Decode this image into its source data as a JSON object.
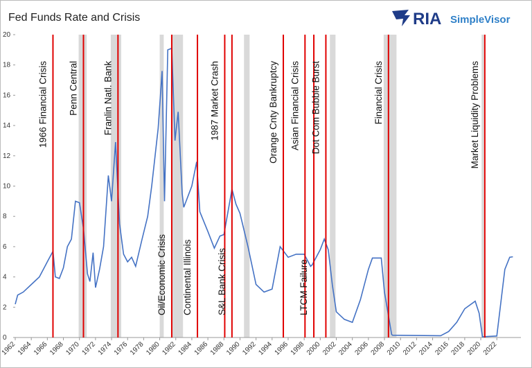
{
  "chart_data": {
    "type": "line",
    "title": "Fed Funds Rate and Crisis",
    "brand": {
      "name": "RIA",
      "product": "SimpleVisor"
    },
    "color": "#4472c4",
    "x": [
      1962,
      1962.3,
      1963,
      1964,
      1965,
      1966,
      1966.7,
      1967,
      1967.5,
      1968,
      1968.5,
      1969,
      1969.5,
      1970,
      1970.5,
      1971,
      1971.3,
      1971.7,
      1972,
      1972.5,
      1973,
      1973.6,
      1974,
      1974.5,
      1975,
      1975.5,
      1976,
      1976.5,
      1977,
      1977.8,
      1978.5,
      1979,
      1979.8,
      1980.3,
      1980.6,
      1981,
      1981.5,
      1981.9,
      1982.3,
      1982.8,
      1983,
      1984,
      1984.6,
      1985,
      1986,
      1986.8,
      1987.5,
      1988,
      1989,
      1989.5,
      1990,
      1991,
      1992,
      1993,
      1994,
      1995,
      1996,
      1997,
      1998,
      1998.8,
      1999,
      2000,
      2000.5,
      2001,
      2001.5,
      2002,
      2003,
      2004,
      2005,
      2006,
      2006.5,
      2007.6,
      2008,
      2008.9,
      2009,
      2015,
      2016,
      2017,
      2018,
      2019.3,
      2019.8,
      2020.2,
      2022,
      2022.5,
      2023,
      2023.6,
      2024
    ],
    "values": [
      2.2,
      2.8,
      3.0,
      3.5,
      4.0,
      5.0,
      5.7,
      4.0,
      3.9,
      4.6,
      6.0,
      6.5,
      9.0,
      8.9,
      7.2,
      4.2,
      3.7,
      5.6,
      3.3,
      4.5,
      6.0,
      10.7,
      9.0,
      12.9,
      7.5,
      5.5,
      5.0,
      5.3,
      4.7,
      6.5,
      8.0,
      10.0,
      13.8,
      17.6,
      9.0,
      19.0,
      19.1,
      13.0,
      14.9,
      9.5,
      8.6,
      10.0,
      11.6,
      8.3,
      7.0,
      5.9,
      6.7,
      6.8,
      9.8,
      8.8,
      8.2,
      6.0,
      3.5,
      3.0,
      3.2,
      6.0,
      5.3,
      5.5,
      5.5,
      4.7,
      4.8,
      5.8,
      6.5,
      5.8,
      3.5,
      1.7,
      1.2,
      1.0,
      2.5,
      4.5,
      5.25,
      5.25,
      3.0,
      0.2,
      0.15,
      0.12,
      0.4,
      1.0,
      1.9,
      2.4,
      1.6,
      0.05,
      0.1,
      2.3,
      4.5,
      5.3,
      5.33
    ],
    "xlim": [
      1962,
      2025
    ],
    "ylim": [
      0,
      20
    ],
    "xticks": [
      1962,
      1964,
      1966,
      1968,
      1970,
      1972,
      1974,
      1976,
      1978,
      1980,
      1982,
      1984,
      1986,
      1988,
      1990,
      1992,
      1994,
      1996,
      1998,
      2000,
      2002,
      2004,
      2006,
      2008,
      2010,
      2012,
      2014,
      2016,
      2018,
      2020,
      2022
    ],
    "yticks": [
      0,
      2,
      4,
      6,
      8,
      10,
      12,
      14,
      16,
      18,
      20
    ],
    "shaded_periods": [
      [
        1969.9,
        1970.9
      ],
      [
        1973.9,
        1975.2
      ],
      [
        1980.0,
        1980.5
      ],
      [
        1981.5,
        1982.9
      ],
      [
        1990.5,
        1991.2
      ],
      [
        2001.2,
        2001.9
      ],
      [
        2007.9,
        2009.5
      ],
      [
        2020.1,
        2020.4
      ]
    ],
    "annotation_color": "#e00000",
    "annotations": [
      {
        "label": "1966 Financial Crisis",
        "x": 1966.7,
        "position": "top"
      },
      {
        "label": "Penn Central",
        "x": 1970.5,
        "position": "top"
      },
      {
        "label": "Franlin Natl. Bank",
        "x": 1974.8,
        "position": "top"
      },
      {
        "label": "Oil/Economic Crisis",
        "x": 1981.5,
        "position": "bottom"
      },
      {
        "label": "Continental Illinois",
        "x": 1984.7,
        "position": "bottom"
      },
      {
        "label": "1987 Market Crash",
        "x": 1988.1,
        "position": "top"
      },
      {
        "label": "S&L Bank Crisis",
        "x": 1989.0,
        "position": "bottom"
      },
      {
        "label": "Orange Cnty Bankruptcy",
        "x": 1995.4,
        "position": "top"
      },
      {
        "label": "Asian Financial Crisis",
        "x": 1998.1,
        "position": "top"
      },
      {
        "label": "LTCM Failure",
        "x": 1999.2,
        "position": "bottom"
      },
      {
        "label": "Dot Com Bubble Burst",
        "x": 2000.7,
        "position": "top"
      },
      {
        "label": "Financial Crisis",
        "x": 2008.5,
        "position": "top"
      },
      {
        "label": "Market Liquidity Problems",
        "x": 2020.5,
        "position": "top"
      }
    ]
  }
}
